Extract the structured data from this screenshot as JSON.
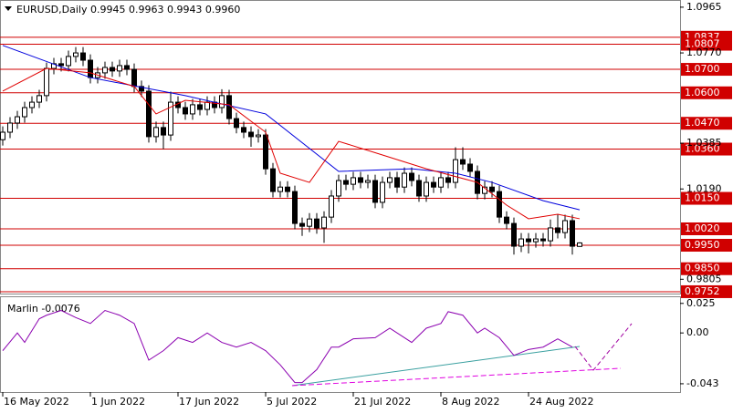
{
  "chart_data": [
    {
      "type": "candlestick",
      "title": "EURUSD,Daily  0.9945 0.9963 0.9943 0.9960",
      "xlim": [
        -0.375,
        92.75
      ],
      "ylim": [
        0.9744,
        1.0984
      ],
      "xticks": [
        {
          "value": 0,
          "label": "16 May 2022"
        },
        {
          "value": 12,
          "label": "1 Jun 2022"
        },
        {
          "value": 24,
          "label": "17 Jun 2022"
        },
        {
          "value": 36,
          "label": "5 Jul 2022"
        },
        {
          "value": 48,
          "label": "21 Jul 2022"
        },
        {
          "value": 60,
          "label": "8 Aug 2022"
        },
        {
          "value": 72,
          "label": "24 Aug 2022"
        }
      ],
      "yticks": [
        1.0965,
        {
          "value": 1.077,
          "label": "1.0770"
        },
        1.0385,
        {
          "value": 1.019,
          "label": "1.0190"
        },
        0.9805
      ],
      "levels": [
        1.0837,
        1.0807,
        {
          "value": 1.07,
          "label": "1.0700"
        },
        {
          "value": 1.06,
          "label": "1.0600"
        },
        {
          "value": 1.047,
          "label": "1.0470"
        },
        {
          "value": 1.036,
          "label": "1.0360"
        },
        {
          "value": 1.015,
          "label": "1.0150"
        },
        {
          "value": 1.002,
          "label": "1.0020"
        },
        {
          "value": 0.995,
          "label": "0.9950"
        },
        {
          "value": 0.985,
          "label": "0.9850"
        },
        0.9752
      ],
      "level_color": "#d00000",
      "up_color": "#ffffff",
      "down_color": "#000000",
      "x": [
        0,
        1,
        2,
        3,
        4,
        5,
        6,
        7,
        8,
        9,
        10,
        11,
        12,
        13,
        14,
        15,
        16,
        17,
        18,
        19,
        20,
        21,
        22,
        23,
        24,
        25,
        26,
        27,
        28,
        29,
        30,
        31,
        32,
        33,
        34,
        35,
        36,
        37,
        38,
        39,
        40,
        41,
        42,
        43,
        44,
        45,
        46,
        47,
        48,
        49,
        50,
        51,
        52,
        53,
        54,
        55,
        56,
        57,
        58,
        59,
        60,
        61,
        62,
        63,
        64,
        65,
        66,
        67,
        68,
        69,
        70,
        71,
        72,
        73,
        74,
        75,
        76,
        77,
        78,
        79
      ],
      "ohlc": [
        [
          1.04,
          1.0457,
          1.0375,
          1.0432
        ],
        [
          1.0432,
          1.0496,
          1.0407,
          1.0471
        ],
        [
          1.0471,
          1.0523,
          1.0446,
          1.0498
        ],
        [
          1.0498,
          1.0562,
          1.0473,
          1.0537
        ],
        [
          1.0537,
          1.0585,
          1.0512,
          1.056
        ],
        [
          1.056,
          1.0613,
          1.0535,
          1.0588
        ],
        [
          1.0588,
          1.0729,
          1.0563,
          1.0704
        ],
        [
          1.0704,
          1.0749,
          1.0679,
          1.0724
        ],
        [
          1.0724,
          1.0749,
          1.0691,
          1.0716
        ],
        [
          1.0716,
          1.078,
          1.0691,
          1.0755
        ],
        [
          1.0755,
          1.0795,
          1.073,
          1.077
        ],
        [
          1.077,
          1.0795,
          1.0714,
          1.0739
        ],
        [
          1.0739,
          1.0764,
          1.064,
          1.0665
        ],
        [
          1.0665,
          1.071,
          1.064,
          1.0685
        ],
        [
          1.0685,
          1.0733,
          1.066,
          1.0708
        ],
        [
          1.0708,
          1.0733,
          1.0668,
          1.0693
        ],
        [
          1.0693,
          1.0741,
          1.0668,
          1.0716
        ],
        [
          1.0716,
          1.0741,
          1.0675,
          1.07
        ],
        [
          1.07,
          1.0725,
          1.0602,
          1.0627
        ],
        [
          1.0627,
          1.0652,
          1.0582,
          1.0607
        ],
        [
          1.0607,
          1.0632,
          1.0388,
          1.0413
        ],
        [
          1.0413,
          1.0477,
          1.0388,
          1.0452
        ],
        [
          1.0452,
          1.0477,
          1.036,
          1.042
        ],
        [
          1.042,
          1.0605,
          1.0395,
          1.056
        ],
        [
          1.056,
          1.0585,
          1.0512,
          1.0537
        ],
        [
          1.0537,
          1.0562,
          1.0485,
          1.051
        ],
        [
          1.051,
          1.0574,
          1.0485,
          1.0549
        ],
        [
          1.0549,
          1.0574,
          1.0504,
          1.0529
        ],
        [
          1.0529,
          1.0585,
          1.0504,
          1.056
        ],
        [
          1.056,
          1.0585,
          1.0512,
          1.0537
        ],
        [
          1.0537,
          1.0615,
          1.0512,
          1.0588
        ],
        [
          1.0588,
          1.0613,
          1.0465,
          1.049
        ],
        [
          1.049,
          1.0515,
          1.0427,
          1.0452
        ],
        [
          1.0452,
          1.0477,
          1.0407,
          1.0432
        ],
        [
          1.0432,
          1.0457,
          1.037,
          1.0413
        ],
        [
          1.0413,
          1.0445,
          1.0388,
          1.042
        ],
        [
          1.042,
          1.0445,
          1.0251,
          1.0276
        ],
        [
          1.0276,
          1.0301,
          1.0154,
          1.0179
        ],
        [
          1.0179,
          1.0223,
          1.0154,
          1.0198
        ],
        [
          1.0198,
          1.0223,
          1.0154,
          1.0179
        ],
        [
          1.0179,
          1.0204,
          1.0018,
          1.0043
        ],
        [
          1.0043,
          1.0068,
          0.999,
          1.0031
        ],
        [
          1.0031,
          1.0087,
          1.0006,
          1.0062
        ],
        [
          1.0062,
          1.0087,
          0.9999,
          1.0024
        ],
        [
          1.0024,
          1.0095,
          0.996,
          1.007
        ],
        [
          1.007,
          1.0185,
          1.0045,
          1.016
        ],
        [
          1.016,
          1.0251,
          1.0135,
          1.0226
        ],
        [
          1.0226,
          1.0251,
          1.0185,
          1.021
        ],
        [
          1.021,
          1.0263,
          1.0185,
          1.0238
        ],
        [
          1.0238,
          1.0263,
          1.0193,
          1.0218
        ],
        [
          1.0218,
          1.0251,
          1.0193,
          1.0226
        ],
        [
          1.0226,
          1.0251,
          1.0108,
          1.0133
        ],
        [
          1.0133,
          1.0243,
          1.0108,
          1.0218
        ],
        [
          1.0218,
          1.0263,
          1.0193,
          1.0238
        ],
        [
          1.0238,
          1.0263,
          1.0173,
          1.0198
        ],
        [
          1.0198,
          1.0282,
          1.0173,
          1.0257
        ],
        [
          1.0257,
          1.0282,
          1.0201,
          1.0226
        ],
        [
          1.0226,
          1.0251,
          1.0135,
          1.016
        ],
        [
          1.016,
          1.0243,
          1.0135,
          1.0218
        ],
        [
          1.0218,
          1.0243,
          1.0173,
          1.0198
        ],
        [
          1.0198,
          1.0263,
          1.0173,
          1.0238
        ],
        [
          1.0238,
          1.0263,
          1.0193,
          1.0218
        ],
        [
          1.0218,
          1.0368,
          1.0193,
          1.0315
        ],
        [
          1.0315,
          1.0368,
          1.0271,
          1.0296
        ],
        [
          1.0296,
          1.0321,
          1.024,
          1.0265
        ],
        [
          1.0265,
          1.029,
          1.0146,
          1.0171
        ],
        [
          1.0171,
          1.0223,
          1.0146,
          1.0198
        ],
        [
          1.0198,
          1.0223,
          1.0154,
          1.0179
        ],
        [
          1.0179,
          1.0204,
          1.0045,
          1.007
        ],
        [
          1.007,
          1.0095,
          1.0018,
          1.0043
        ],
        [
          1.0043,
          1.0068,
          0.991,
          0.9946
        ],
        [
          0.9946,
          1.0002,
          0.9921,
          0.9977
        ],
        [
          0.9977,
          1.0002,
          0.9915,
          0.9965
        ],
        [
          0.9965,
          1.0002,
          0.994,
          0.9977
        ],
        [
          0.9977,
          1.0002,
          0.9944,
          0.9969
        ],
        [
          0.9969,
          1.006,
          0.9944,
          1.0024
        ],
        [
          1.0024,
          1.008,
          0.9979,
          1.0004
        ],
        [
          1.0004,
          1.008,
          0.9979,
          1.0055
        ],
        [
          1.0055,
          1.008,
          0.991,
          0.9946
        ],
        [
          0.9945,
          0.9963,
          0.9943,
          0.996
        ]
      ],
      "moving_averages": [
        {
          "color": "#0000dd",
          "x": [
            0,
            12,
            25,
            36,
            46,
            56,
            62,
            67,
            74,
            79
          ],
          "values": [
            1.0802,
            1.0665,
            1.0588,
            1.051,
            1.0265,
            1.0276,
            1.0257,
            1.0218,
            1.014,
            1.0101
          ]
        },
        {
          "color": "#e00000",
          "x": [
            0,
            6,
            12,
            18,
            21,
            25,
            31,
            36,
            38,
            42,
            46,
            52,
            58,
            65,
            69,
            72,
            76,
            79
          ],
          "values": [
            1.0607,
            1.0704,
            1.0685,
            1.0627,
            1.051,
            1.0568,
            1.0549,
            1.0432,
            1.0257,
            1.0218,
            1.0393,
            1.0335,
            1.0276,
            1.0218,
            1.0121,
            1.0063,
            1.0082,
            1.0063
          ]
        }
      ]
    },
    {
      "type": "line",
      "title": "Marlin -0.0076",
      "color": "#8b00b0",
      "ylim": [
        -0.05,
        0.031
      ],
      "yticks": [
        0.025,
        {
          "value": 0,
          "label": "0.00"
        },
        -0.043
      ],
      "x": [
        0,
        2,
        3,
        5,
        6,
        8,
        10,
        12,
        14,
        16,
        18,
        20,
        22,
        24,
        26,
        28,
        30,
        32,
        34,
        36,
        38,
        40,
        41,
        43,
        45,
        46,
        48,
        51,
        53,
        56,
        58,
        60,
        61,
        63,
        65,
        66,
        68,
        70,
        72,
        74,
        76,
        78
      ],
      "values": [
        -0.015,
        0,
        -0.008,
        0.012,
        0.015,
        0.019,
        0.013,
        0.008,
        0.019,
        0.015,
        0.008,
        -0.023,
        -0.015,
        -0.004,
        -0.008,
        0,
        -0.008,
        -0.012,
        -0.008,
        -0.015,
        -0.027,
        -0.042,
        -0.042,
        -0.031,
        -0.012,
        -0.012,
        -0.005,
        -0.004,
        0.004,
        -0.008,
        0.004,
        0.008,
        0.018,
        0.015,
        0,
        0.004,
        -0.004,
        -0.019,
        -0.014,
        -0.012,
        -0.005,
        -0.012
      ]
    }
  ]
}
